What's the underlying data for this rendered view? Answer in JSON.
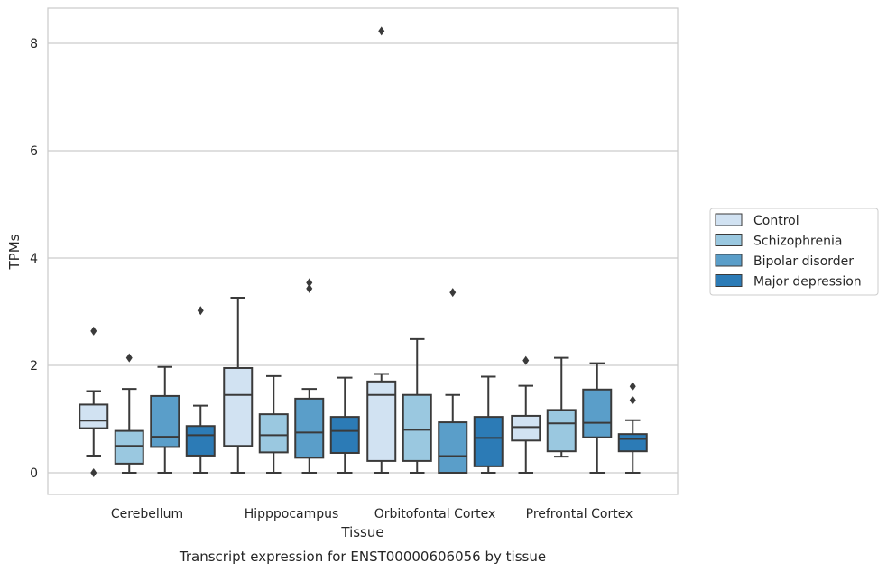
{
  "chart_data": {
    "type": "box",
    "xlabel": "Tissue",
    "ylabel": "TPMs",
    "caption": "Transcript expression for ENST00000606056 by tissue",
    "ylim": [
      -0.4,
      8.65
    ],
    "yticks": [
      0,
      2,
      4,
      6,
      8
    ],
    "grid": true,
    "legend_position": "right",
    "categories": [
      "Cerebellum",
      "Hipppocampus",
      "Orbitofontal Cortex",
      "Prefrontal Cortex"
    ],
    "series": [
      {
        "name": "Control",
        "color": "#d1e2f2",
        "boxes": [
          {
            "whislo": 0.32,
            "q1": 0.83,
            "med": 0.97,
            "q3": 1.27,
            "whishi": 1.52,
            "fliers": [
              2.64,
              0.0
            ]
          },
          {
            "whislo": 0.0,
            "q1": 0.5,
            "med": 1.45,
            "q3": 1.95,
            "whishi": 3.26,
            "fliers": []
          },
          {
            "whislo": 0.0,
            "q1": 0.22,
            "med": 1.45,
            "q3": 1.7,
            "whishi": 1.84,
            "fliers": [
              8.23
            ]
          },
          {
            "whislo": 0.0,
            "q1": 0.6,
            "med": 0.85,
            "q3": 1.06,
            "whishi": 1.62,
            "fliers": [
              2.09
            ]
          }
        ]
      },
      {
        "name": "Schizophrenia",
        "color": "#9ac8e0",
        "boxes": [
          {
            "whislo": 0.0,
            "q1": 0.17,
            "med": 0.5,
            "q3": 0.78,
            "whishi": 1.56,
            "fliers": [
              2.14
            ]
          },
          {
            "whislo": 0.0,
            "q1": 0.38,
            "med": 0.7,
            "q3": 1.09,
            "whishi": 1.8,
            "fliers": []
          },
          {
            "whislo": 0.0,
            "q1": 0.22,
            "med": 0.8,
            "q3": 1.45,
            "whishi": 2.49,
            "fliers": []
          },
          {
            "whislo": 0.3,
            "q1": 0.4,
            "med": 0.92,
            "q3": 1.17,
            "whishi": 2.14,
            "fliers": []
          }
        ]
      },
      {
        "name": "Bipolar disorder",
        "color": "#5a9ec9",
        "boxes": [
          {
            "whislo": 0.0,
            "q1": 0.48,
            "med": 0.67,
            "q3": 1.43,
            "whishi": 1.97,
            "fliers": []
          },
          {
            "whislo": 0.0,
            "q1": 0.28,
            "med": 0.75,
            "q3": 1.38,
            "whishi": 1.56,
            "fliers": [
              3.43,
              3.54
            ]
          },
          {
            "whislo": 0.0,
            "q1": 0.0,
            "med": 0.31,
            "q3": 0.94,
            "whishi": 1.45,
            "fliers": [
              3.36
            ]
          },
          {
            "whislo": 0.0,
            "q1": 0.66,
            "med": 0.93,
            "q3": 1.55,
            "whishi": 2.04,
            "fliers": []
          }
        ]
      },
      {
        "name": "Major depression",
        "color": "#2c7bb6",
        "boxes": [
          {
            "whislo": 0.0,
            "q1": 0.32,
            "med": 0.7,
            "q3": 0.87,
            "whishi": 1.25,
            "fliers": [
              3.02
            ]
          },
          {
            "whislo": 0.0,
            "q1": 0.37,
            "med": 0.78,
            "q3": 1.04,
            "whishi": 1.77,
            "fliers": []
          },
          {
            "whislo": 0.0,
            "q1": 0.12,
            "med": 0.65,
            "q3": 1.04,
            "whishi": 1.79,
            "fliers": []
          },
          {
            "whislo": 0.0,
            "q1": 0.4,
            "med": 0.63,
            "q3": 0.72,
            "whishi": 0.98,
            "fliers": [
              1.35,
              1.61
            ]
          }
        ]
      }
    ]
  }
}
